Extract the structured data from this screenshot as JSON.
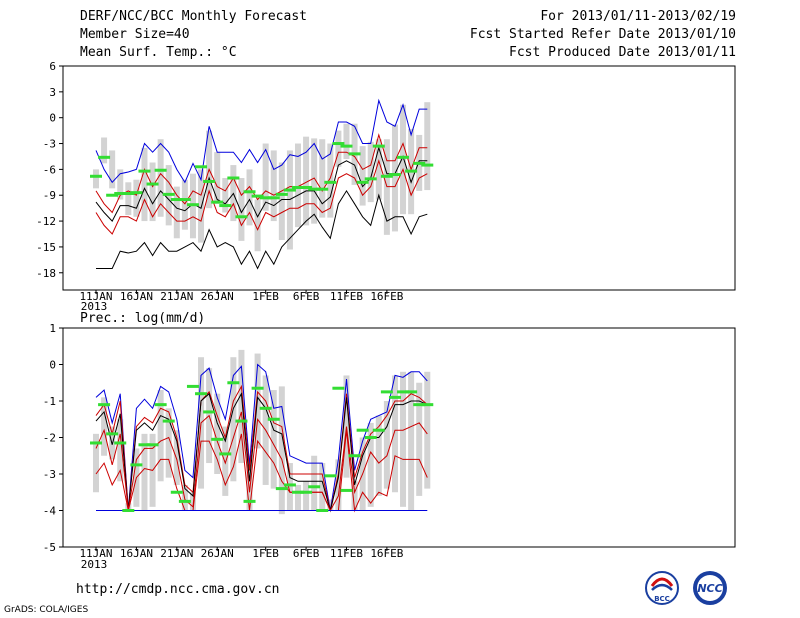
{
  "header": {
    "title": "DERF/NCC/BCC Monthly Forecast",
    "member": "Member Size=40",
    "variable": "Mean Surf. Temp.: °C",
    "period": "For 2013/01/11-2013/02/19",
    "start": "Fcst Started Refer Date 2013/01/10",
    "produced": "Fcst Produced Date 2013/01/11"
  },
  "footer": {
    "url": "http://cmdp.ncc.cma.gov.cn",
    "credit": "GrADS: COLA/IGES",
    "logo_left": "BCC",
    "logo_right": "NCC"
  },
  "colors": {
    "max_line": "#0000dd",
    "mean_line": "#000000",
    "band_line": "#cc0000",
    "spread_bar": "#d3d3d3",
    "median_mark": "#33dd33"
  },
  "chart_data": [
    {
      "type": "line",
      "title": "Mean Surf. Temp.: °C",
      "x_tick_labels": [
        "11JAN 2013",
        "16JAN",
        "21JAN",
        "26JAN",
        "1FEB",
        "6FEB",
        "11FEB",
        "16FEB"
      ],
      "x_tick_days": [
        0,
        5,
        10,
        15,
        21,
        26,
        31,
        36
      ],
      "ylim": [
        -20,
        6
      ],
      "yticks": [
        6,
        3,
        0,
        -3,
        -6,
        -9,
        -12,
        -15,
        -18
      ],
      "series": [
        {
          "name": "max",
          "values": [
            -3.8,
            -6,
            -7.5,
            -6.5,
            -6.3,
            -6,
            -3,
            -4,
            -3,
            -4,
            -6,
            -7.5,
            -5.3,
            -7.2,
            -1,
            -4,
            -4,
            -4,
            -5.2,
            -3.7,
            -5.2,
            -3.7,
            -6,
            -5.5,
            -4.3,
            -4.5,
            -4,
            -3,
            -4.8,
            -4.2,
            -0.5,
            -0.5,
            -1,
            -3,
            -3,
            2,
            -0.5,
            -1,
            1.5,
            -2,
            1,
            1
          ]
        },
        {
          "name": "upper",
          "values": [
            -8.5,
            -10,
            -11,
            -9,
            -8.5,
            -9,
            -6,
            -8,
            -6.5,
            -7.5,
            -9,
            -10,
            -8.5,
            -9,
            -6,
            -8,
            -8.5,
            -7,
            -9,
            -8,
            -9.5,
            -8.5,
            -9,
            -8.5,
            -8,
            -8,
            -7.5,
            -7,
            -8.5,
            -7,
            -4,
            -4,
            -4.5,
            -6,
            -5.5,
            -2,
            -5,
            -5,
            -3,
            -6,
            -3.5,
            -3.5
          ]
        },
        {
          "name": "mean",
          "values": [
            -9.8,
            -11,
            -12,
            -10.2,
            -10.2,
            -10.5,
            -8.2,
            -10,
            -8.5,
            -9.5,
            -10.5,
            -10.8,
            -10,
            -10.5,
            -7,
            -9.5,
            -10,
            -8.8,
            -11,
            -9.5,
            -11.5,
            -9.8,
            -10.2,
            -9.5,
            -9.5,
            -9,
            -8.5,
            -8.5,
            -10,
            -9.2,
            -5.5,
            -5,
            -5.5,
            -8,
            -7,
            -3.5,
            -6.5,
            -6.5,
            -4.5,
            -7.5,
            -5,
            -5
          ]
        },
        {
          "name": "lower",
          "values": [
            -11,
            -12.5,
            -13.5,
            -11.5,
            -11.5,
            -12,
            -9.5,
            -11.5,
            -10,
            -11,
            -12,
            -12,
            -11.5,
            -12,
            -8.5,
            -11,
            -11.5,
            -10,
            -12.5,
            -11,
            -13,
            -11,
            -11.5,
            -11,
            -10.5,
            -10.5,
            -10,
            -10,
            -11,
            -10.5,
            -7,
            -6.5,
            -7,
            -9,
            -8,
            -5,
            -8,
            -8,
            -6,
            -9,
            -7,
            -6.5
          ]
        },
        {
          "name": "min",
          "values": [
            -17.5,
            -17.5,
            -17.5,
            -15.5,
            -15.7,
            -15.5,
            -14.5,
            -16,
            -14.5,
            -15.5,
            -15.5,
            -15,
            -14.5,
            -15.5,
            -13,
            -15,
            -14.5,
            -15,
            -17,
            -15.5,
            -17.5,
            -15.5,
            -17,
            -15,
            -14,
            -13,
            -12,
            -11.2,
            -12.7,
            -14,
            -10,
            -8.5,
            -10,
            -11.5,
            -12.5,
            -9,
            -12,
            -11.5,
            -11.5,
            -13.5,
            -11.5,
            -11.2
          ]
        }
      ],
      "spread": [
        [
          -8.2,
          -6
        ],
        [
          -5.3,
          -2.3
        ],
        [
          -8.2,
          -3.8
        ],
        [
          -9.5,
          -6
        ],
        [
          -11.3,
          -7.5
        ],
        [
          -11.5,
          -7.2
        ],
        [
          -12,
          -3.5
        ],
        [
          -12,
          -5.2
        ],
        [
          -11.5,
          -2.5
        ],
        [
          -12.5,
          -5.5
        ],
        [
          -14,
          -8
        ],
        [
          -13,
          -7.2
        ],
        [
          -14,
          -6.5
        ],
        [
          -14.5,
          -6
        ],
        [
          -10.5,
          -1.5
        ],
        [
          -10,
          -4
        ],
        [
          -11,
          -7
        ],
        [
          -12,
          -5.5
        ],
        [
          -14.3,
          -7
        ],
        [
          -12.5,
          -6
        ],
        [
          -15.5,
          -9.5
        ],
        [
          -10.8,
          -3
        ],
        [
          -12,
          -3.8
        ],
        [
          -14.2,
          -5.2
        ],
        [
          -15.3,
          -3.8
        ],
        [
          -12.7,
          -3
        ],
        [
          -12.5,
          -2.2
        ],
        [
          -12.3,
          -2.4
        ],
        [
          -11.6,
          -2.5
        ],
        [
          -11.6,
          -3
        ],
        [
          -5.7,
          -1.5
        ],
        [
          -4.8,
          -0.7
        ],
        [
          -7.8,
          -0.7
        ],
        [
          -10.2,
          -3.3
        ],
        [
          -9.8,
          -2.8
        ],
        [
          -9.5,
          -2.5
        ],
        [
          -13.6,
          -2.5
        ],
        [
          -13.2,
          -0.8
        ],
        [
          -11.2,
          1.5
        ],
        [
          -11.2,
          -1.3
        ],
        [
          -8.5,
          -2
        ],
        [
          -8.4,
          1.8
        ]
      ],
      "median": [
        -6.8,
        -4.6,
        -9,
        -8.8,
        -8.8,
        -8.7,
        -6.2,
        -7.7,
        -6.1,
        -8.9,
        -9.5,
        -9.5,
        -10.1,
        -5.7,
        -7.4,
        -9.8,
        -10.2,
        -7,
        -11.5,
        -8.6,
        -9.1,
        -9.3,
        -9.3,
        -8.9,
        -8.4,
        -8.1,
        -8.1,
        -8.3,
        -8.3,
        -7.5,
        -3,
        -3.3,
        -4.2,
        -7.5,
        -7.1,
        -3.3,
        -6.8,
        -6.6,
        -4.6,
        -6.2,
        -5.3,
        -5.5
      ]
    },
    {
      "type": "line",
      "title": "Prec.: log(mm/d)",
      "x_tick_labels": [
        "11JAN 2013",
        "16JAN",
        "21JAN",
        "26JAN",
        "1FEB",
        "6FEB",
        "11FEB",
        "16FEB"
      ],
      "x_tick_days": [
        0,
        5,
        10,
        15,
        21,
        26,
        31,
        36
      ],
      "ylim": [
        -5,
        1
      ],
      "yticks": [
        1,
        0,
        -1,
        -2,
        -3,
        -4,
        -5
      ],
      "series": [
        {
          "name": "max",
          "values": [
            -0.9,
            -0.7,
            -1.6,
            -0.8,
            -4,
            -1.2,
            -0.95,
            -1.2,
            -0.6,
            -0.75,
            -1.5,
            -2.9,
            -3.1,
            -0.3,
            -0.1,
            -0.9,
            -1.5,
            -0.3,
            -0.05,
            -2.75,
            0,
            -0.2,
            -1.2,
            -1.15,
            -2.5,
            -2.6,
            -2.7,
            -2.7,
            -2.7,
            -4,
            -2.6,
            -0.4,
            -2.9,
            -2.1,
            -1.5,
            -1.4,
            -1.3,
            -0.3,
            -0.35,
            -0.2,
            -0.2,
            -0.45
          ]
        },
        {
          "name": "upper",
          "values": [
            -1.4,
            -1.1,
            -1.9,
            -1,
            -4,
            -1.7,
            -1.45,
            -1.6,
            -1.2,
            -1.3,
            -2,
            -3.3,
            -3.5,
            -1,
            -0.75,
            -1.4,
            -2,
            -1,
            -0.6,
            -2.9,
            -0.75,
            -1,
            -1.6,
            -1.7,
            -3,
            -3,
            -3,
            -3,
            -3,
            -4,
            -3,
            -0.8,
            -3.1,
            -2.4,
            -1.9,
            -1.7,
            -1.4,
            -1,
            -1,
            -0.8,
            -0.9,
            -1.1
          ]
        },
        {
          "name": "mean",
          "values": [
            -1.55,
            -1.3,
            -2.2,
            -1.35,
            -4,
            -1.8,
            -1.6,
            -1.8,
            -1.4,
            -1.5,
            -2.1,
            -3.4,
            -3.6,
            -1,
            -0.8,
            -1.6,
            -2.1,
            -1.2,
            -0.8,
            -3.2,
            -0.9,
            -1.2,
            -1.8,
            -1.9,
            -3.1,
            -3.2,
            -3.2,
            -3.2,
            -3.2,
            -4,
            -3.1,
            -0.9,
            -3.3,
            -2.5,
            -2,
            -2,
            -1.7,
            -1.1,
            -1.1,
            -1,
            -1,
            -1.1
          ]
        },
        {
          "name": "lower",
          "values": [
            -2.3,
            -1.8,
            -2.75,
            -1.9,
            -4,
            -2.6,
            -2.3,
            -2.3,
            -2.1,
            -2,
            -2.6,
            -3.7,
            -3.9,
            -1.6,
            -1.4,
            -2.1,
            -2.7,
            -2,
            -1.3,
            -3.5,
            -1.5,
            -1.8,
            -2.2,
            -2.6,
            -3.5,
            -3.5,
            -3.5,
            -3.5,
            -3.5,
            -4,
            -3.6,
            -1.7,
            -3.5,
            -3,
            -2.4,
            -2.7,
            -2.5,
            -1.8,
            -1.8,
            -1.7,
            -1.6,
            -1.9
          ]
        },
        {
          "name": "low",
          "values": [
            -3,
            -2.7,
            -3.3,
            -2.9,
            -4,
            -3.1,
            -2.85,
            -2.9,
            -2.6,
            -2.6,
            -3.4,
            -4,
            -4,
            -2.1,
            -2.1,
            -2.6,
            -3.3,
            -2.8,
            -1.9,
            -4,
            -2.1,
            -2.4,
            -2.7,
            -3.2,
            -3.5,
            -3.5,
            -3.5,
            -3.5,
            -3.5,
            -4,
            -4,
            -1.8,
            -4,
            -3.5,
            -3.8,
            -3.5,
            -3.6,
            -2.5,
            -2.6,
            -2.6,
            -2.6,
            -3.1
          ]
        },
        {
          "name": "zero_line",
          "values": [
            -4,
            -4,
            -4,
            -4,
            -4,
            -4,
            -4,
            -4,
            -4,
            -4,
            -4,
            -4,
            -4,
            -4,
            -4,
            -4,
            -4,
            -4,
            -4,
            -4,
            -4,
            -4,
            -4,
            -4,
            -4,
            -4,
            -4,
            -4,
            -4,
            -4,
            -4,
            -4,
            -4,
            -4,
            -4,
            -4,
            -4,
            -4,
            -4,
            -4,
            -4,
            -4
          ]
        }
      ],
      "spread": [
        [
          -3.5,
          -1.9
        ],
        [
          -2.5,
          -0.9
        ],
        [
          -2.6,
          -1.7
        ],
        [
          -3.2,
          -1.5
        ],
        [
          -4,
          -3.8
        ],
        [
          -3.9,
          -2.3
        ],
        [
          -4,
          -1.9
        ],
        [
          -3.9,
          -1.9
        ],
        [
          -3.2,
          -0.7
        ],
        [
          -3.1,
          -1.2
        ],
        [
          -3.3,
          -1.8
        ],
        [
          -4,
          -3.3
        ],
        [
          -4,
          -3.5
        ],
        [
          -3.4,
          0.2
        ],
        [
          -2.7,
          -0.1
        ],
        [
          -3,
          -0.8
        ],
        [
          -3.6,
          -1.7
        ],
        [
          -3.2,
          0.2
        ],
        [
          -2.7,
          0.4
        ],
        [
          -4,
          -2.5
        ],
        [
          -2.3,
          0.3
        ],
        [
          -3.3,
          -0.3
        ],
        [
          -3.4,
          -0.7
        ],
        [
          -4.1,
          -0.6
        ],
        [
          -4,
          -2.7
        ],
        [
          -4,
          -3.3
        ],
        [
          -4,
          -3.2
        ],
        [
          -4,
          -2.5
        ],
        [
          -4,
          -2.7
        ],
        [
          -4,
          -3.7
        ],
        [
          -4,
          -2.6
        ],
        [
          -3.1,
          -0.3
        ],
        [
          -4,
          -3.2
        ],
        [
          -4,
          -2
        ],
        [
          -3.9,
          -1.6
        ],
        [
          -3.6,
          -1.4
        ],
        [
          -3.4,
          -1
        ],
        [
          -3.5,
          -0.3
        ],
        [
          -3.9,
          -0.2
        ],
        [
          -4,
          -0.2
        ],
        [
          -3.6,
          -0.5
        ],
        [
          -3.4,
          -0.2
        ]
      ],
      "median": [
        -2.15,
        -1.1,
        -1.9,
        -2.15,
        -4,
        -2.75,
        -2.2,
        -2.2,
        -1.1,
        -1.55,
        -3.5,
        -3.75,
        -0.6,
        -0.8,
        -1.3,
        -2.05,
        -2.45,
        -0.5,
        -1.55,
        -3.75,
        -0.65,
        -1.2,
        -1.5,
        -3.4,
        -3.3,
        -3.5,
        -3.5,
        -3.35,
        -4,
        -3.05,
        -0.65,
        -3.45,
        -2.5,
        -1.8,
        -2,
        -1.8,
        -0.75,
        -0.9,
        -0.75,
        -0.75,
        -1.1,
        -1.1
      ]
    }
  ]
}
